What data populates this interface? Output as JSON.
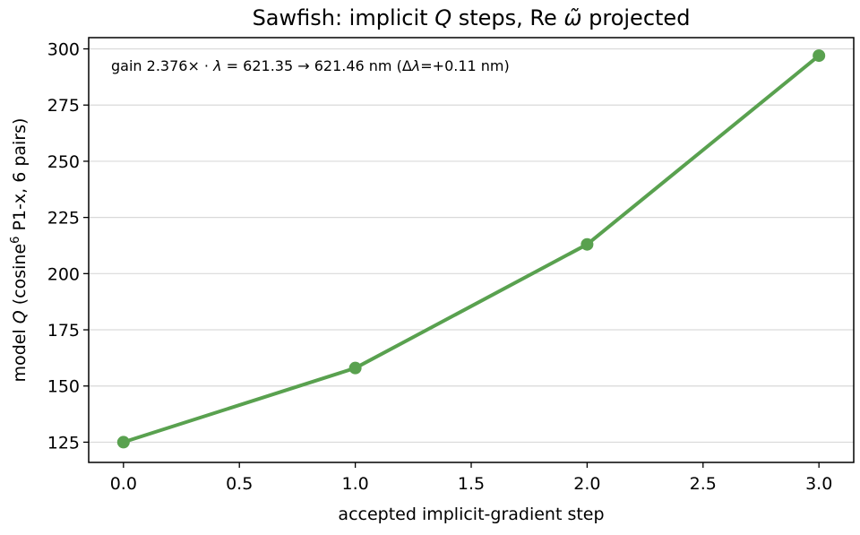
{
  "chart_data": {
    "type": "line",
    "title": "Sawfish: implicit Q steps, Re ω̃ projected",
    "xlabel": "accepted implicit-gradient step",
    "ylabel": "model Q (cosine⁶ P1-x, 6 pairs)",
    "annotation": "gain 2.376×  ·  λ = 621.35 → 621.46 nm  (Δλ=+0.11 nm)",
    "x": [
      0,
      1,
      2,
      3
    ],
    "series": [
      {
        "values": [
          125,
          158,
          213,
          297
        ],
        "color": "#59a14f"
      }
    ],
    "xlim": [
      -0.15,
      3.15
    ],
    "ylim": [
      116,
      305
    ],
    "xticks": [
      0.0,
      0.5,
      1.0,
      1.5,
      2.0,
      2.5,
      3.0
    ],
    "xtick_labels": [
      "0.0",
      "0.5",
      "1.0",
      "1.5",
      "2.0",
      "2.5",
      "3.0"
    ],
    "yticks": [
      125,
      150,
      175,
      200,
      225,
      250,
      275,
      300
    ],
    "ytick_labels": [
      "125",
      "150",
      "175",
      "200",
      "225",
      "250",
      "275",
      "300"
    ],
    "grid": "horizontal",
    "legend": "none"
  }
}
